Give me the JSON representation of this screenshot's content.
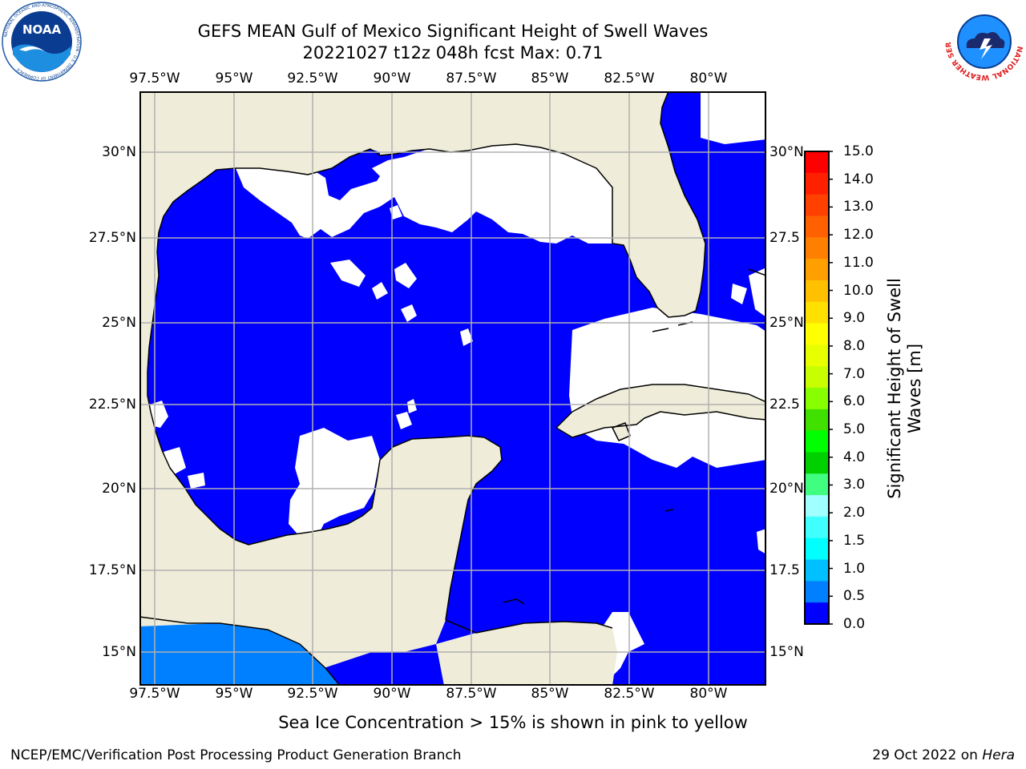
{
  "title": {
    "line1": "GEFS MEAN Gulf of Mexico Significant Height of Swell Waves",
    "line2": "20221027 t12z 048h fcst   Max: 0.71"
  },
  "map": {
    "lon_ticks_top": [
      "97.5°W",
      "95°W",
      "92.5°W",
      "90°W",
      "87.5°W",
      "85°W",
      "82.5°W",
      "80°W"
    ],
    "lon_ticks_bottom": [
      "97.5°W",
      "95°W",
      "92.5°W",
      "90°W",
      "87.5°W",
      "85°W",
      "82.5°W",
      "80°W"
    ],
    "lat_ticks_left": [
      "30°N",
      "27.5°N",
      "25°N",
      "22.5°N",
      "20°N",
      "17.5°N",
      "15°N"
    ],
    "lat_ticks_right": [
      "30°N",
      "27.5",
      "25°N",
      "22.5",
      "20°N",
      "17.5",
      "15°N"
    ],
    "extent": {
      "lon_min": -98,
      "lon_max": -78.2,
      "lat_min": 14,
      "lat_max": 31.8
    },
    "land_color": "#efedda",
    "ocean_value_color": "#0000ff",
    "southwest_band_color": "#0080ff",
    "no_data_color": "#ffffff",
    "grid_color": "#b0b0b0"
  },
  "colorbar": {
    "label_line1": "Significant Height of Swell",
    "label_line2": "Waves [m]",
    "ticks": [
      "15.0",
      "14.0",
      "13.0",
      "12.0",
      "11.0",
      "10.0",
      "9.0",
      "8.0",
      "7.0",
      "6.0",
      "5.0",
      "4.0",
      "3.0",
      "2.0",
      "1.5",
      "1.0",
      "0.5",
      "0.0"
    ],
    "colors": [
      "#ff0000",
      "#ff2000",
      "#ff4000",
      "#ff6000",
      "#ff8000",
      "#ffa000",
      "#ffc000",
      "#ffe000",
      "#ffff00",
      "#e8ff00",
      "#c8ff00",
      "#88ff00",
      "#40e000",
      "#00ff00",
      "#00d000",
      "#40ff80",
      "#a0ffff",
      "#40ffff",
      "#00ffff",
      "#00c0ff",
      "#0080ff",
      "#0000ff"
    ]
  },
  "note": "Sea Ice Concentration > 15% is shown in pink to yellow",
  "footer": {
    "left": "NCEP/EMC/Verification Post Processing Product Generation Branch",
    "date": "29 Oct 2022 on ",
    "host": "Hera"
  },
  "logos": {
    "noaa": "NOAA",
    "noaa_ring": "NATIONAL OCEANIC AND ATMOSPHERIC ADMINISTRATION · U.S. DEPARTMENT OF COMMERCE",
    "nws_ring": "NATIONAL WEATHER SERVICE"
  }
}
